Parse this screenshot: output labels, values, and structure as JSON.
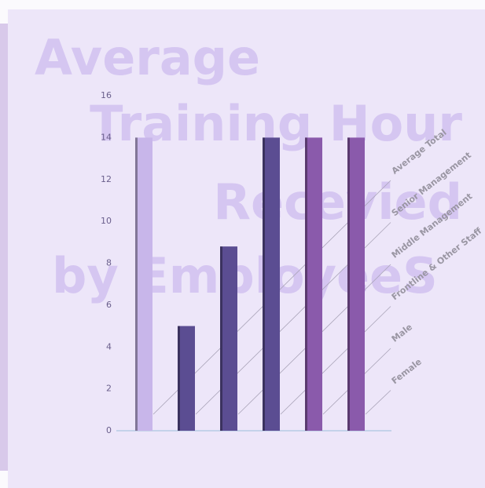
{
  "chart_data": {
    "type": "bar",
    "title_lines": [
      "Average",
      "Training Hour",
      "Recevied",
      "by EmployeeS"
    ],
    "categories": [
      "Average Total",
      "Senior Management",
      "Middle Management",
      "Frontline & Other Staff",
      "Male",
      "Female"
    ],
    "values": [
      14,
      5,
      8.8,
      14,
      14,
      14
    ],
    "colors": [
      "#c8b6ea",
      "#5b4d92",
      "#5b4d92",
      "#5b4d92",
      "#8a5aab",
      "#8a5aab"
    ],
    "ylim": [
      0,
      16
    ],
    "yticks": [
      0,
      2,
      4,
      6,
      8,
      10,
      12,
      14,
      16
    ],
    "grid": false
  }
}
